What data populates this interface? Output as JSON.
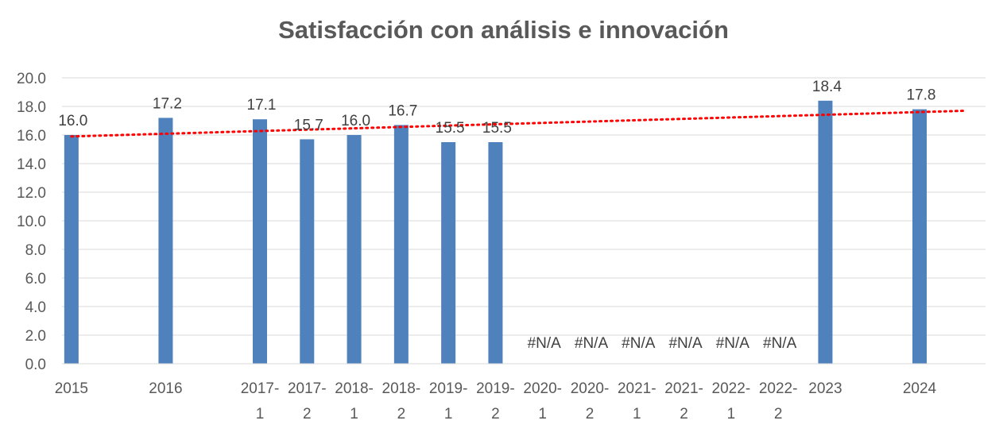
{
  "chart_data": {
    "type": "bar",
    "title": "Satisfacción con análisis e innovación",
    "categories": [
      "2015",
      "2016",
      "2017-1",
      "2017-2",
      "2018-1",
      "2018-2",
      "2019-1",
      "2019-2",
      "2020-1",
      "2020-2",
      "2021-1",
      "2021-2",
      "2022-1",
      "2022-2",
      "2023",
      "2024"
    ],
    "x_positions": [
      2015,
      2016,
      2017,
      2017.5,
      2018,
      2018.5,
      2019,
      2019.5,
      2020,
      2020.5,
      2021,
      2021.5,
      2022,
      2022.5,
      2023,
      2024
    ],
    "values": [
      16.0,
      17.2,
      17.1,
      15.7,
      16.0,
      16.7,
      15.5,
      15.5,
      null,
      null,
      null,
      null,
      null,
      null,
      18.4,
      17.8
    ],
    "data_labels": [
      "16.0",
      "17.2",
      "17.1",
      "15.7",
      "16.0",
      "16.7",
      "15.5",
      "15.5",
      "#N/A",
      "#N/A",
      "#N/A",
      "#N/A",
      "#N/A",
      "#N/A",
      "18.4",
      "17.8"
    ],
    "y_ticks": [
      "0.0",
      "2.0",
      "4.0",
      "6.0",
      "8.0",
      "10.0",
      "12.0",
      "14.0",
      "16.0",
      "18.0",
      "20.0"
    ],
    "ylim": [
      0,
      20
    ],
    "xlim": [
      2014.9,
      2024.7
    ],
    "grid": true,
    "bar_color": "#4F81BD",
    "trendline": {
      "type": "linear",
      "style": "dotted",
      "color": "#FF0000",
      "start": [
        2015,
        15.9
      ],
      "end": [
        2024.5,
        17.7
      ]
    }
  }
}
